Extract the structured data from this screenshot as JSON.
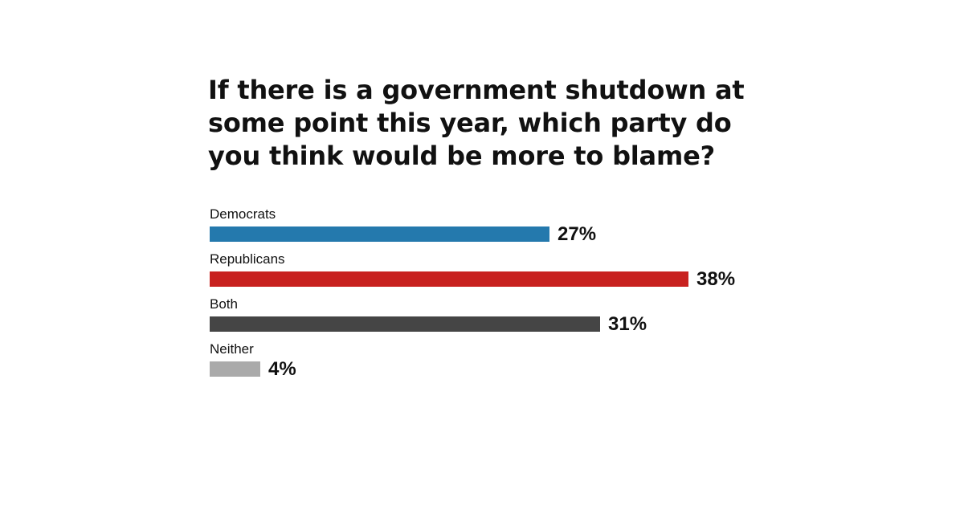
{
  "chart_data": {
    "type": "bar",
    "orientation": "horizontal",
    "title": "If there is a government shutdown at some point this year, which party do you think would be more to blame?",
    "categories": [
      "Democrats",
      "Republicans",
      "Both",
      "Neither"
    ],
    "values": [
      27,
      38,
      31,
      4
    ],
    "value_labels": [
      "27%",
      "38%",
      "31%",
      "4%"
    ],
    "colors": [
      "#2479ad",
      "#c8211f",
      "#454545",
      "#aaaaaa"
    ],
    "unit": "%",
    "xlim": [
      0,
      38
    ],
    "grid": false,
    "legend": "none"
  }
}
